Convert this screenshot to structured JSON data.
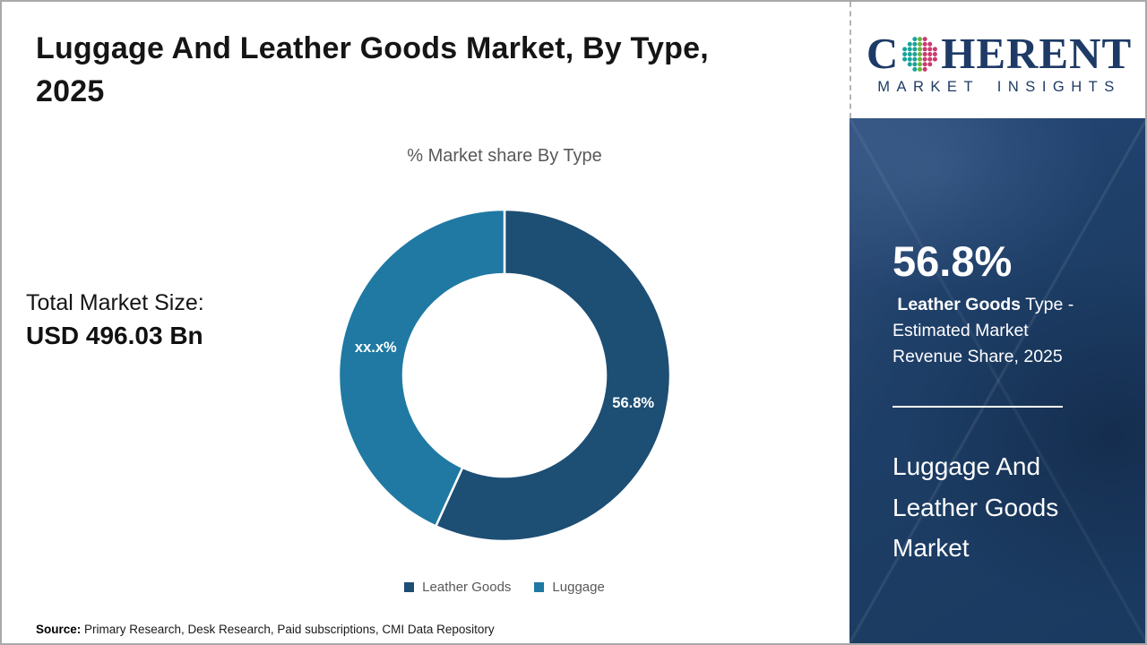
{
  "page": {
    "title_line1": "Luggage And Leather Goods Market, By Type,",
    "title_line2": "2025"
  },
  "logo": {
    "brand_prefix": "C",
    "brand_suffix": "HERENT",
    "subtitle": "MARKET INSIGHTS",
    "navy": "#1e3a66",
    "globe_colors": [
      "#18a39b",
      "#6cb33f",
      "#cb3a6e"
    ]
  },
  "chart_data": {
    "type": "pie",
    "donut": true,
    "title": "% Market share By Type",
    "labels": [
      "Leather Goods",
      "Luggage"
    ],
    "values": [
      56.8,
      43.2
    ],
    "display_values": [
      "56.8%",
      "xx.x%"
    ],
    "colors": [
      "#1d4e74",
      "#1f79a3"
    ],
    "start_angle_deg": 0,
    "direction": "clockwise",
    "legend_position": "bottom"
  },
  "totals": {
    "label": "Total Market Size:",
    "value": "USD 496.03 Bn"
  },
  "sidebar": {
    "stat_value": "56.8%",
    "stat_desc_bold": " Leather Goods",
    "stat_desc_rest": " Type - Estimated Market Revenue Share, 2025",
    "market_name": "Luggage And Leather Goods Market"
  },
  "source": {
    "label": "Source:",
    "text": " Primary Research, Desk Research, Paid subscriptions, CMI Data Repository"
  }
}
